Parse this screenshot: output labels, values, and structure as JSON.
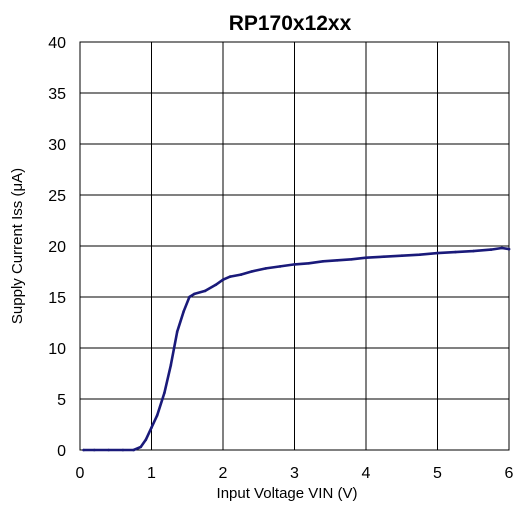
{
  "chart_data": {
    "type": "line",
    "title": "RP170x12xx",
    "xlabel": "Input Voltage VIN (V)",
    "ylabel": "Supply Current Iss (μA)",
    "xlim": [
      0,
      6
    ],
    "ylim": [
      0,
      40
    ],
    "x_ticks": [
      "0",
      "1",
      "2",
      "3",
      "4",
      "5",
      "6"
    ],
    "y_ticks": [
      "0",
      "5",
      "10",
      "15",
      "20",
      "25",
      "30",
      "35",
      "40"
    ],
    "grid": true,
    "series": [
      {
        "color": "#1a1a7a",
        "points": [
          [
            0.05,
            0.0
          ],
          [
            0.2,
            0.0
          ],
          [
            0.4,
            0.0
          ],
          [
            0.6,
            0.0
          ],
          [
            0.75,
            0.0
          ],
          [
            0.85,
            0.3
          ],
          [
            0.92,
            1.0
          ],
          [
            1.0,
            2.2
          ],
          [
            1.08,
            3.4
          ],
          [
            1.18,
            5.6
          ],
          [
            1.27,
            8.3
          ],
          [
            1.36,
            11.6
          ],
          [
            1.45,
            13.6
          ],
          [
            1.53,
            15.0
          ],
          [
            1.6,
            15.3
          ],
          [
            1.75,
            15.6
          ],
          [
            1.9,
            16.2
          ],
          [
            2.0,
            16.7
          ],
          [
            2.1,
            17.0
          ],
          [
            2.25,
            17.2
          ],
          [
            2.4,
            17.5
          ],
          [
            2.6,
            17.8
          ],
          [
            2.8,
            18.0
          ],
          [
            3.0,
            18.2
          ],
          [
            3.2,
            18.3
          ],
          [
            3.4,
            18.5
          ],
          [
            3.6,
            18.6
          ],
          [
            3.8,
            18.7
          ],
          [
            4.0,
            18.85
          ],
          [
            4.25,
            18.95
          ],
          [
            4.5,
            19.05
          ],
          [
            4.75,
            19.15
          ],
          [
            5.0,
            19.3
          ],
          [
            5.25,
            19.4
          ],
          [
            5.5,
            19.5
          ],
          [
            5.75,
            19.65
          ],
          [
            5.9,
            19.8
          ],
          [
            6.0,
            19.7
          ]
        ]
      }
    ]
  }
}
